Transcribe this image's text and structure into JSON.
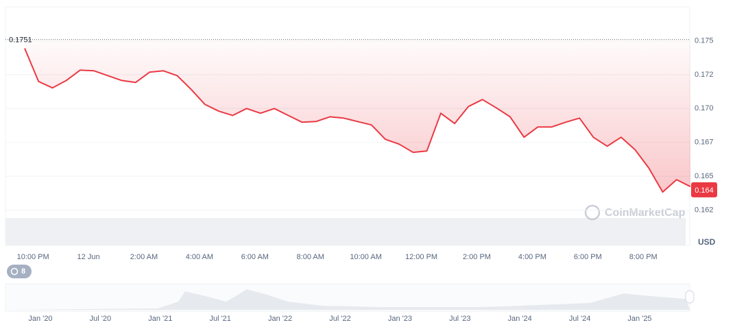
{
  "chart_data": {
    "type": "line",
    "x": [
      -0.3,
      0.2,
      0.7,
      1.2,
      1.7,
      2.2,
      2.7,
      3.2,
      3.7,
      4.2,
      4.7,
      5.2,
      5.7,
      6.2,
      6.7,
      7.2,
      7.7,
      8.2,
      8.7,
      9.2,
      9.7,
      10.2,
      10.7,
      11.2,
      11.7,
      12.2,
      12.7,
      13.2,
      13.7,
      14.2,
      14.7,
      15.2,
      15.7,
      16.2,
      16.7,
      17.2,
      17.7,
      18.2,
      18.7,
      19.2,
      19.7,
      20.2,
      20.7,
      21.2,
      21.7,
      22.2,
      22.7,
      23.2,
      23.7
    ],
    "series": [
      {
        "color": "#ea3943",
        "values": [
          0.17444,
          0.172,
          0.17152,
          0.17207,
          0.17283,
          0.17278,
          0.17242,
          0.17207,
          0.17192,
          0.17268,
          0.17278,
          0.17242,
          0.17141,
          0.1703,
          0.1698,
          0.16949,
          0.17,
          0.16965,
          0.17,
          0.16949,
          0.16899,
          0.16904,
          0.16939,
          0.16929,
          0.16904,
          0.16879,
          0.16773,
          0.16737,
          0.16677,
          0.16687,
          0.16965,
          0.16889,
          0.17015,
          0.17066,
          0.17005,
          0.16939,
          0.16788,
          0.16864,
          0.16864,
          0.16899,
          0.16929,
          0.16788,
          0.16722,
          0.16788,
          0.16697,
          0.16561,
          0.16384,
          0.16475,
          0.16424
        ]
      }
    ],
    "xlim": [
      -0.3,
      23.7
    ],
    "xticks": [
      {
        "value": 0,
        "label": "10:00 PM"
      },
      {
        "value": 2,
        "label": "12 Jun"
      },
      {
        "value": 4,
        "label": "2:00 AM"
      },
      {
        "value": 6,
        "label": "4:00 AM"
      },
      {
        "value": 8,
        "label": "6:00 AM"
      },
      {
        "value": 10,
        "label": "8:00 AM"
      },
      {
        "value": 12,
        "label": "10:00 AM"
      },
      {
        "value": 14,
        "label": "12:00 PM"
      },
      {
        "value": 16,
        "label": "2:00 PM"
      },
      {
        "value": 18,
        "label": "4:00 PM"
      },
      {
        "value": 20,
        "label": "6:00 PM"
      },
      {
        "value": 22,
        "label": "8:00 PM"
      }
    ],
    "ylim": [
      0.1599,
      0.1775
    ],
    "yticks": [
      {
        "value": 0.175,
        "label": "0.175"
      },
      {
        "value": 0.1725,
        "label": "0.172"
      },
      {
        "value": 0.17,
        "label": "0.170"
      },
      {
        "value": 0.1675,
        "label": "0.167"
      },
      {
        "value": 0.165,
        "label": "0.165"
      },
      {
        "value": 0.1625,
        "label": "0.162"
      }
    ],
    "y_unit": "USD",
    "open_price": {
      "value": 0.1751,
      "label": "0.1751"
    },
    "last_price": {
      "value": 0.164,
      "label": "0.164"
    },
    "grid": true,
    "watermark": "CoinMarketCap",
    "history_badge": "8",
    "navigator_labels": [
      "Jan '20",
      "Jul '20",
      "Jan '21",
      "Jul '21",
      "Jan '22",
      "Jul '22",
      "Jan '23",
      "Jul '23",
      "Jan '24",
      "Jul '24",
      "Jan '25"
    ]
  }
}
